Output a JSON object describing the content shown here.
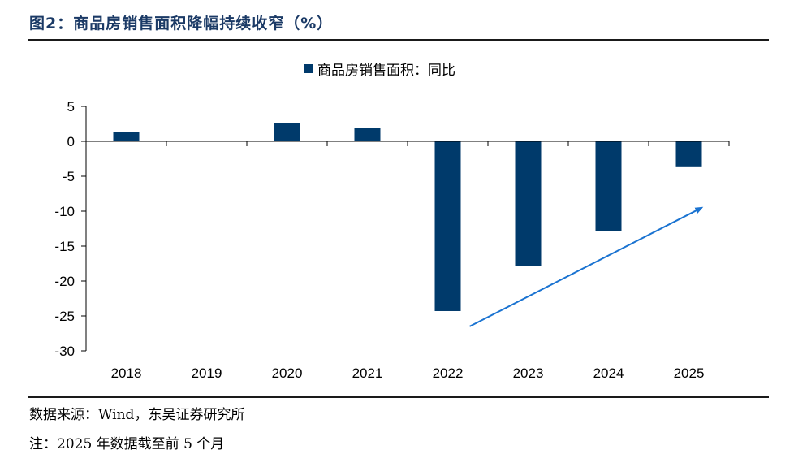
{
  "figure_title": "图2：商品房销售面积降幅持续收窄（%）",
  "source_note": "数据来源：Wind，东吴证券研究所",
  "footnote": "注：2025 年数据截至前 5 个月",
  "colors": {
    "bar": "#003a6b",
    "arrow": "#1a73d1",
    "axis": "#000000",
    "rule": "#1a1a1a"
  },
  "chart_data": {
    "type": "bar",
    "categories": [
      "2018",
      "2019",
      "2020",
      "2021",
      "2022",
      "2023",
      "2024",
      "2025"
    ],
    "series": [
      {
        "name": "商品房销售面积：同比",
        "values": [
          1.3,
          0,
          2.6,
          1.9,
          -24.3,
          -17.8,
          -12.9,
          -3.7
        ]
      }
    ],
    "ylim": [
      -30,
      5
    ],
    "yticks": [
      5,
      0,
      -5,
      -10,
      -15,
      -20,
      -25,
      -30
    ],
    "legend": "top-center",
    "grid": false,
    "annotations": [
      {
        "type": "arrow",
        "from": {
          "x": "2022",
          "y": -26.5
        },
        "to": {
          "x": "2025",
          "y": -9.5
        }
      }
    ]
  }
}
